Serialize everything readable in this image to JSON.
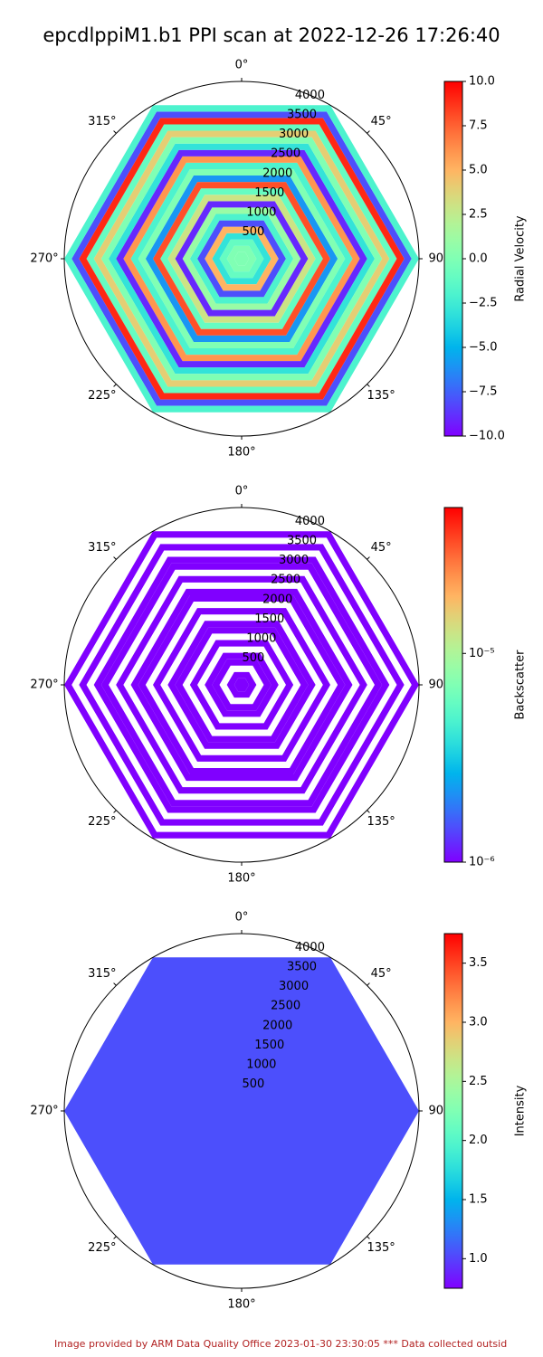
{
  "title": "epcdlppiM1.b1 PPI scan at 2022-12-26 17:26:40",
  "footer": "Image provided by ARM Data Quality Office 2023-01-30 23:30:05    *** Data collected outsid",
  "chart_data": [
    {
      "type": "ppi",
      "cmap": "rainbow",
      "log": false,
      "clabel": "Radial Velocity",
      "clim": [
        -10,
        10
      ],
      "cticks": [
        {
          "value": -10,
          "label": "−10.0"
        },
        {
          "value": -7.5,
          "label": "−7.5"
        },
        {
          "value": -5,
          "label": "−5.0"
        },
        {
          "value": -2.5,
          "label": "−2.5"
        },
        {
          "value": 0,
          "label": "0.0"
        },
        {
          "value": 2.5,
          "label": "2.5"
        },
        {
          "value": 5,
          "label": "5.0"
        },
        {
          "value": 7.5,
          "label": "7.5"
        },
        {
          "value": 10,
          "label": "10.0"
        }
      ],
      "rlim": [
        0,
        4200
      ],
      "rticks": [
        500,
        1000,
        1500,
        2000,
        2500,
        3000,
        3500,
        4000
      ],
      "theta_ticks": [
        {
          "value": 0,
          "label": "0°"
        },
        {
          "value": 45,
          "label": "45°"
        },
        {
          "value": 90,
          "label": "90°"
        },
        {
          "value": 135,
          "label": "135°"
        },
        {
          "value": 180,
          "label": "180°"
        },
        {
          "value": 225,
          "label": "225°"
        },
        {
          "value": 270,
          "label": "270°"
        },
        {
          "value": 315,
          "label": "315°"
        }
      ],
      "ranges": [
        0,
        175,
        350,
        525,
        700,
        875,
        1050,
        1225,
        1400,
        1575,
        1750,
        1925,
        2100,
        2275,
        2450,
        2625,
        2800,
        2975,
        3150,
        3325,
        3500,
        3675,
        3850,
        4025,
        4200
      ],
      "values": [
        0,
        0,
        -1,
        -3,
        5,
        -8,
        -2,
        1,
        -9,
        3,
        -1,
        8,
        -6,
        0,
        -2,
        6,
        -9,
        -3,
        0,
        4,
        -1,
        9,
        -8,
        -2
      ]
    },
    {
      "type": "ppi",
      "cmap": "rainbow",
      "log": true,
      "clabel": "Backscatter",
      "clim": [
        1e-06,
        5e-05
      ],
      "cticks": [
        {
          "value": 1e-06,
          "label": "10⁻⁶"
        },
        {
          "value": 1e-05,
          "label": "10⁻⁵"
        }
      ],
      "rlim": [
        0,
        4200
      ],
      "rticks": [
        500,
        1000,
        1500,
        2000,
        2500,
        3000,
        3500,
        4000
      ],
      "theta_ticks": [
        {
          "value": 0,
          "label": "0°"
        },
        {
          "value": 45,
          "label": "45°"
        },
        {
          "value": 90,
          "label": "90°"
        },
        {
          "value": 135,
          "label": "135°"
        },
        {
          "value": 180,
          "label": "180°"
        },
        {
          "value": 225,
          "label": "225°"
        },
        {
          "value": 270,
          "label": "270°"
        },
        {
          "value": 315,
          "label": "315°"
        }
      ],
      "ranges": [
        0,
        175,
        350,
        525,
        700,
        875,
        1050,
        1225,
        1400,
        1575,
        1750,
        1925,
        2100,
        2275,
        2450,
        2625,
        2800,
        2975,
        3150,
        3325,
        3500,
        3675,
        3850,
        4025,
        4200
      ],
      "values": [
        1e-06,
        1e-06,
        null,
        1e-06,
        1e-06,
        null,
        1e-06,
        null,
        1e-06,
        1e-06,
        null,
        1e-06,
        null,
        1e-06,
        1e-06,
        null,
        1e-06,
        null,
        1e-06,
        1e-06,
        null,
        1e-06,
        null,
        1e-06
      ]
    },
    {
      "type": "ppi",
      "cmap": "rainbow",
      "log": false,
      "clabel": "Intensity",
      "clim": [
        0.75,
        3.75
      ],
      "cticks": [
        {
          "value": 1,
          "label": "1.0"
        },
        {
          "value": 1.5,
          "label": "1.5"
        },
        {
          "value": 2,
          "label": "2.0"
        },
        {
          "value": 2.5,
          "label": "2.5"
        },
        {
          "value": 3,
          "label": "3.0"
        },
        {
          "value": 3.5,
          "label": "3.5"
        }
      ],
      "rlim": [
        0,
        4200
      ],
      "rticks": [
        500,
        1000,
        1500,
        2000,
        2500,
        3000,
        3500,
        4000
      ],
      "theta_ticks": [
        {
          "value": 0,
          "label": "0°"
        },
        {
          "value": 45,
          "label": "45°"
        },
        {
          "value": 90,
          "label": "90°"
        },
        {
          "value": 135,
          "label": "135°"
        },
        {
          "value": 180,
          "label": "180°"
        },
        {
          "value": 225,
          "label": "225°"
        },
        {
          "value": 270,
          "label": "270°"
        },
        {
          "value": 315,
          "label": "315°"
        }
      ],
      "ranges": [
        0,
        4200
      ],
      "values": [
        1.05
      ]
    }
  ]
}
